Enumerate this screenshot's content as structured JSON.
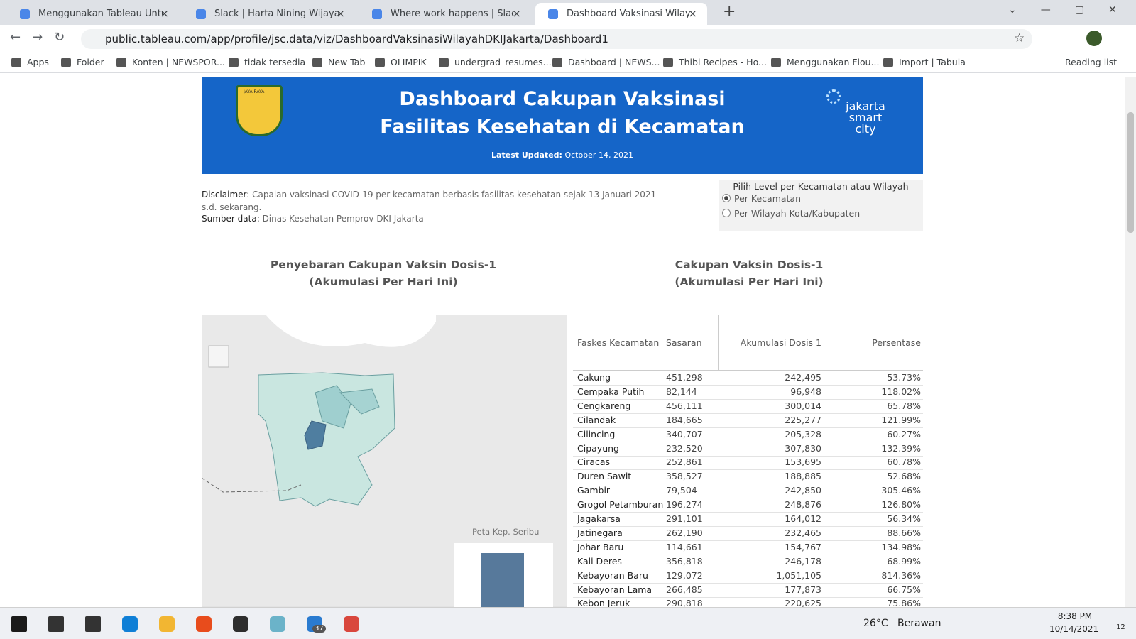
{
  "browser": {
    "tabs": [
      "Menggunakan Tableau Untuk Me",
      "Slack | Harta Nining Wijaya | Data",
      "Where work happens | Slack",
      "Dashboard Vaksinasi Wilayah DK"
    ],
    "active_tab": 3,
    "url": "public.tableau.com/app/profile/jsc.data/viz/DashboardVaksinasiWilayahDKIJakarta/Dashboard1",
    "bookmarks": [
      "Apps",
      "Folder",
      "Konten | NEWSPOR...",
      "tidak tersedia",
      "New Tab",
      "OLIMPIK",
      "undergrad_resumes...",
      "Dashboard | NEWS...",
      "Thibi Recipes - Ho...",
      "Menggunakan Flou...",
      "Import | Tabula"
    ],
    "reading_list": "Reading list"
  },
  "header": {
    "crest": "JAYA RAYA",
    "title_lines": [
      "Dashboard Cakupan Vaksinasi",
      "Fasilitas Kesehatan di Kecamatan"
    ],
    "updated_label": "Latest Updated:",
    "updated_value": "October 14, 2021",
    "logo": [
      "jakarta",
      "smart",
      "city"
    ]
  },
  "info": {
    "disclaimer_label": "Disclaimer:",
    "disclaimer_text": "Capaian vaksinasi COVID-19 per kecamatan berbasis fasilitas kesehatan sejak 13 Januari 2021 s.d. sekarang.",
    "source_label": "Sumber data:",
    "source_text": "Dinas Kesehatan Pemprov DKI Jakarta"
  },
  "filter": {
    "title": "Pilih Level per Kecamatan atau Wilayah",
    "options": [
      "Per Kecamatan",
      "Per Wilayah Kota/Kabupaten"
    ],
    "selected": 0
  },
  "map": {
    "title_lines": [
      "Penyebaran Cakupan Vaksin Dosis-1",
      "(Akumulasi Per Hari Ini)"
    ],
    "inset_label": "Peta Kep. Seribu"
  },
  "table": {
    "title_lines": [
      "Cakupan Vaksin Dosis-1",
      "(Akumulasi Per Hari Ini)"
    ],
    "columns": [
      "Faskes Kecamatan",
      "Sasaran",
      "Akumulasi Dosis 1",
      "Persentase"
    ],
    "rows": [
      [
        "Cakung",
        "451,298",
        "242,495",
        "53.73%"
      ],
      [
        "Cempaka Putih",
        "82,144",
        "96,948",
        "118.02%"
      ],
      [
        "Cengkareng",
        "456,111",
        "300,014",
        "65.78%"
      ],
      [
        "Cilandak",
        "184,665",
        "225,277",
        "121.99%"
      ],
      [
        "Cilincing",
        "340,707",
        "205,328",
        "60.27%"
      ],
      [
        "Cipayung",
        "232,520",
        "307,830",
        "132.39%"
      ],
      [
        "Ciracas",
        "252,861",
        "153,695",
        "60.78%"
      ],
      [
        "Duren Sawit",
        "358,527",
        "188,885",
        "52.68%"
      ],
      [
        "Gambir",
        "79,504",
        "242,850",
        "305.46%"
      ],
      [
        "Grogol Petamburan",
        "196,274",
        "248,876",
        "126.80%"
      ],
      [
        "Jagakarsa",
        "291,101",
        "164,012",
        "56.34%"
      ],
      [
        "Jatinegara",
        "262,190",
        "232,465",
        "88.66%"
      ],
      [
        "Johar Baru",
        "114,661",
        "154,767",
        "134.98%"
      ],
      [
        "Kali Deres",
        "356,818",
        "246,178",
        "68.99%"
      ],
      [
        "Kebayoran Baru",
        "129,072",
        "1,051,105",
        "814.36%"
      ],
      [
        "Kebayoran Lama",
        "266,485",
        "177,873",
        "66.75%"
      ],
      [
        "Kebon Jeruk",
        "290,818",
        "220,625",
        "75.86%"
      ]
    ]
  },
  "taskbar": {
    "app_badge": "37",
    "temperature": "26°C",
    "weather": "Berawan",
    "time": "8:38 PM",
    "date": "10/14/2021",
    "notification_count": "12"
  }
}
